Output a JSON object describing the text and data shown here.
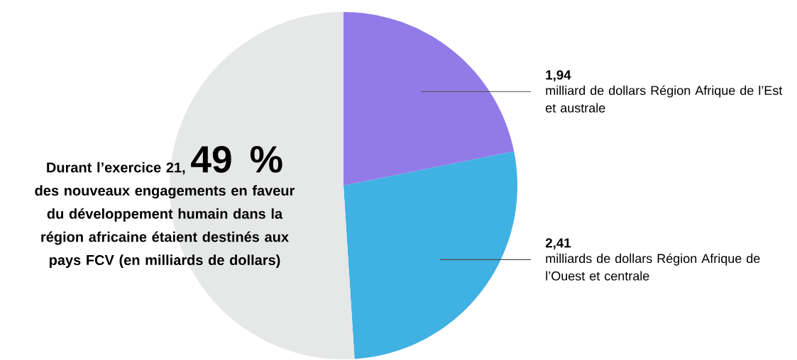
{
  "chart_data": {
    "type": "pie",
    "title": "Durant l’exercice 21,",
    "annotations": [
      "49 %"
    ],
    "subtitle": "des nouveaux engagements en faveur du développement humain dans la région africaine étaient destinés aux pays FCV (en milliards de dollars)",
    "categories": [
      "milliard de dollars Région Afrique de l’Est et australe",
      "milliards de dollars Région Afrique de l’Ouest et centrale",
      null
    ],
    "values": [
      1.94,
      2.41,
      4.53
    ],
    "value_labels": [
      "1,94",
      "2,41",
      null
    ],
    "colors": [
      "#927be8",
      "#3fb1e3",
      "#e6e7e7"
    ]
  }
}
